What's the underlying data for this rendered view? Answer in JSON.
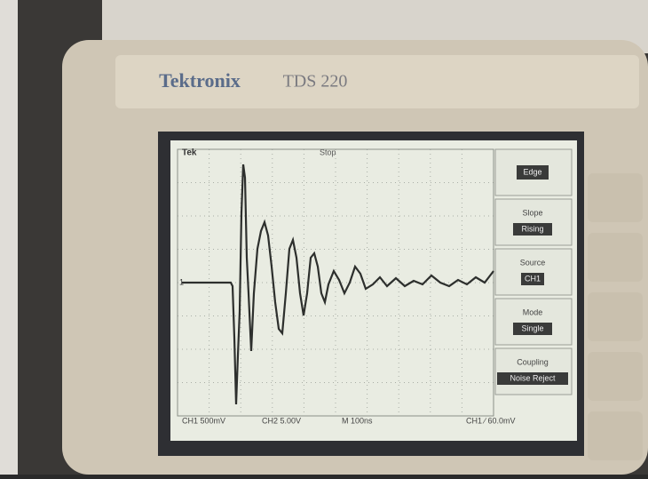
{
  "brand": "Tektronix",
  "model": "TDS 220",
  "status": {
    "left": "Tek",
    "run": "Stop"
  },
  "menu": [
    {
      "label": "Edge"
    },
    {
      "label": "Slope",
      "value": "Rising"
    },
    {
      "label": "Source",
      "value": "CH1"
    },
    {
      "label": "Mode",
      "value": "Single"
    },
    {
      "label": "Coupling",
      "value": "Noise Reject"
    }
  ],
  "readout": {
    "ch1": "CH1 500mV",
    "ch2": "CH2 5.00V",
    "time": "M 100ns",
    "trigger": "CH1 ∕ 60.0mV"
  }
}
